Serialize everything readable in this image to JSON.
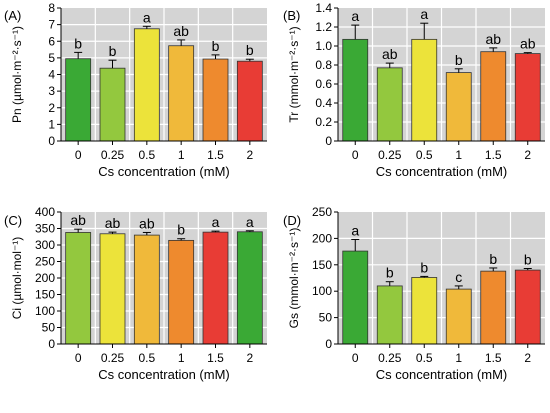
{
  "colors": {
    "panel_bg": "#d4d4d4",
    "grid": "#ffffff",
    "bar_stroke": "#333333",
    "bar_palette": [
      "#3aa935",
      "#93c83e",
      "#ece33a",
      "#f0b93a",
      "#ee8a2e",
      "#e83c35"
    ]
  },
  "chart_data": [
    {
      "type": "bar",
      "panel_label": "(A)",
      "categories": [
        "0",
        "0.25",
        "0.5",
        "1",
        "1.5",
        "2"
      ],
      "values": [
        4.95,
        4.38,
        6.75,
        5.73,
        4.93,
        4.8
      ],
      "errors": [
        0.38,
        0.48,
        0.15,
        0.35,
        0.25,
        0.12
      ],
      "letters": [
        "b",
        "b",
        "a",
        "ab",
        "b",
        "b"
      ],
      "bar_colors": [
        "#3aa935",
        "#93c83e",
        "#ece33a",
        "#f0b93a",
        "#ee8a2e",
        "#e83c35"
      ],
      "ylabel": "Pn (µmol·m⁻²·s⁻¹)",
      "xlabel": "Cs concentration (mM)",
      "ylim": [
        0,
        8
      ],
      "yticks": [
        "0",
        "1",
        "2",
        "3",
        "4",
        "5",
        "6",
        "7",
        "8"
      ],
      "grid": true
    },
    {
      "type": "bar",
      "panel_label": "(B)",
      "categories": [
        "0",
        "0.25",
        "0.5",
        "1",
        "1.5",
        "2"
      ],
      "values": [
        1.07,
        0.77,
        1.07,
        0.72,
        0.94,
        0.92
      ],
      "errors": [
        0.15,
        0.05,
        0.17,
        0.04,
        0.04,
        0.01
      ],
      "letters": [
        "a",
        "ab",
        "a",
        "b",
        "ab",
        "ab"
      ],
      "bar_colors": [
        "#3aa935",
        "#93c83e",
        "#ece33a",
        "#f0b93a",
        "#ee8a2e",
        "#e83c35"
      ],
      "ylabel": "Tr (mmol·m⁻²·s⁻¹)",
      "xlabel": "Cs concentration (mM)",
      "ylim": [
        0,
        1.4
      ],
      "yticks": [
        "0",
        "0.2",
        "0.4",
        "0.6",
        "0.8",
        "1.0",
        "1.2",
        "1.4"
      ],
      "grid": true
    },
    {
      "type": "bar",
      "panel_label": "(C)",
      "categories": [
        "0",
        "0.25",
        "0.5",
        "1",
        "1.5",
        "2"
      ],
      "values": [
        338,
        334,
        330,
        314,
        339,
        340
      ],
      "errors": [
        10,
        5,
        8,
        5,
        3,
        3
      ],
      "letters": [
        "ab",
        "ab",
        "ab",
        "b",
        "a",
        "a"
      ],
      "bar_colors": [
        "#93c83e",
        "#ece33a",
        "#f0b93a",
        "#ee8a2e",
        "#e83c35",
        "#3aa935"
      ],
      "ylabel": "Ci (µmol·mol⁻¹)",
      "xlabel": "Cs concentration (mM)",
      "ylim": [
        0,
        400
      ],
      "yticks": [
        "0",
        "50",
        "100",
        "150",
        "200",
        "250",
        "300",
        "350",
        "400"
      ],
      "grid": true
    },
    {
      "type": "bar",
      "panel_label": "(D)",
      "categories": [
        "0",
        "0.25",
        "0.5",
        "1",
        "1.5",
        "2"
      ],
      "values": [
        176,
        110,
        126,
        104,
        138,
        140
      ],
      "errors": [
        22,
        8,
        2,
        6,
        6,
        3
      ],
      "letters": [
        "a",
        "b",
        "b",
        "c",
        "b",
        "b"
      ],
      "bar_colors": [
        "#3aa935",
        "#93c83e",
        "#ece33a",
        "#f0b93a",
        "#ee8a2e",
        "#e83c35"
      ],
      "ylabel": "Gs (mmol·m⁻²·s⁻¹)",
      "xlabel": "Cs concentration (mM)",
      "ylim": [
        0,
        250
      ],
      "yticks": [
        "0",
        "50",
        "100",
        "150",
        "200",
        "250"
      ],
      "grid": true
    }
  ]
}
